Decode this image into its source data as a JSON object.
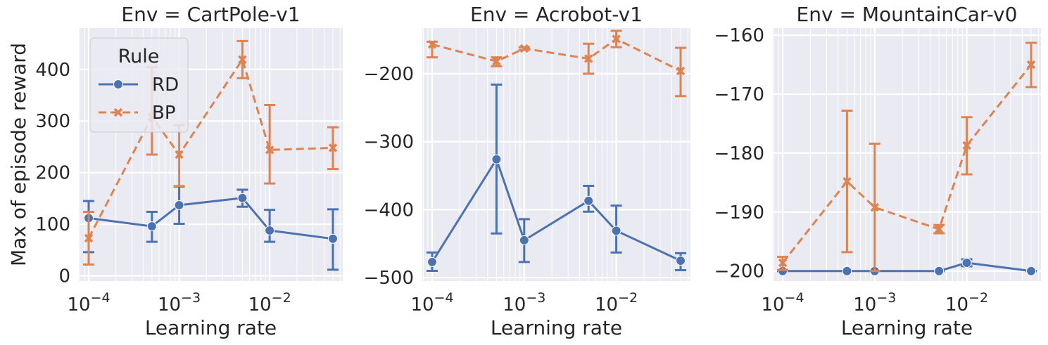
{
  "figure": {
    "ylabel": "Max of episode reward",
    "xlabel": "Learning rate",
    "legend": {
      "title": "Rule",
      "entries": [
        "RD",
        "BP"
      ],
      "placement": "upper-left of first panel"
    }
  },
  "colors": {
    "RD": "#4c72b0",
    "BP": "#dd8452",
    "panel_bg": "#eaeaf2",
    "grid": "#ffffff"
  },
  "chart_data": [
    {
      "type": "line",
      "title": "Env = CartPole-v1",
      "xlabel": "Learning rate",
      "ylabel": "Max of episode reward",
      "xscale": "log",
      "xlim": [
        0.0001,
        0.05
      ],
      "xticks": [
        0.0001,
        0.001,
        0.01
      ],
      "xtick_labels": [
        "10^-4",
        "10^-3",
        "10^-2"
      ],
      "ylim": [
        -10,
        480
      ],
      "yticks": [
        0,
        100,
        200,
        300,
        400
      ],
      "yticklabels": [
        "0",
        "100",
        "200",
        "300",
        "400"
      ],
      "grid": true,
      "series": [
        {
          "name": "RD",
          "marker": "circle",
          "linestyle": "solid",
          "x": [
            0.0001,
            0.0005,
            0.001,
            0.005,
            0.01,
            0.05
          ],
          "y": [
            112,
            96,
            137,
            151,
            88,
            72
          ],
          "err_low": [
            46,
            66,
            101,
            134,
            66,
            12
          ],
          "err_high": [
            145,
            124,
            173,
            167,
            128,
            129
          ]
        },
        {
          "name": "BP",
          "marker": "x",
          "linestyle": "dashed",
          "x": [
            0.0001,
            0.0005,
            0.001,
            0.005,
            0.01,
            0.05
          ],
          "y": [
            73,
            308,
            235,
            419,
            244,
            248
          ],
          "err_low": [
            22,
            235,
            174,
            383,
            179,
            207
          ],
          "err_high": [
            124,
            404,
            292,
            455,
            331,
            288
          ]
        }
      ]
    },
    {
      "type": "line",
      "title": "Env = Acrobot-v1",
      "xlabel": "Learning rate",
      "ylabel": "",
      "xscale": "log",
      "xlim": [
        0.0001,
        0.05
      ],
      "xticks": [
        0.0001,
        0.001,
        0.01
      ],
      "xtick_labels": [
        "10^-4",
        "10^-3",
        "10^-2"
      ],
      "ylim": [
        -505,
        -133
      ],
      "yticks": [
        -500,
        -400,
        -300,
        -200
      ],
      "yticklabels": [
        "−500",
        "−400",
        "−300",
        "−200"
      ],
      "grid": true,
      "series": [
        {
          "name": "RD",
          "marker": "circle",
          "linestyle": "solid",
          "x": [
            0.0001,
            0.0005,
            0.001,
            0.005,
            0.01,
            0.05
          ],
          "y": [
            -477,
            -326,
            -445,
            -387,
            -431,
            -475
          ],
          "err_low": [
            -490,
            -435,
            -477,
            -403,
            -463,
            -489
          ],
          "err_high": [
            -463,
            -216,
            -414,
            -365,
            -394,
            -464
          ]
        },
        {
          "name": "BP",
          "marker": "x",
          "linestyle": "dashed",
          "x": [
            0.0001,
            0.0005,
            0.001,
            0.005,
            0.01,
            0.05
          ],
          "y": [
            -157,
            -182,
            -163,
            -178,
            -149,
            -196
          ],
          "err_low": [
            -176,
            -189,
            -165,
            -200,
            -161,
            -233
          ],
          "err_high": [
            -153,
            -176,
            -161,
            -156,
            -137,
            -162
          ]
        }
      ]
    },
    {
      "type": "line",
      "title": "Env = MountainCar-v0",
      "xlabel": "Learning rate",
      "ylabel": "",
      "xscale": "log",
      "xlim": [
        0.0001,
        0.05
      ],
      "xticks": [
        0.0001,
        0.001,
        0.01
      ],
      "xtick_labels": [
        "10^-4",
        "10^-3",
        "10^-2"
      ],
      "ylim": [
        -201.7,
        -158.8
      ],
      "yticks": [
        -200,
        -190,
        -180,
        -170,
        -160
      ],
      "yticklabels": [
        "−200",
        "−190",
        "−180",
        "−170",
        "−160"
      ],
      "grid": true,
      "series": [
        {
          "name": "RD",
          "marker": "circle",
          "linestyle": "solid",
          "x": [
            0.0001,
            0.0005,
            0.001,
            0.005,
            0.01,
            0.05
          ],
          "y": [
            -200,
            -200,
            -200,
            -200,
            -198.6,
            -200
          ],
          "err_low": [
            -200,
            -200,
            -200,
            -200,
            -199.2,
            -200
          ],
          "err_high": [
            -200,
            -200,
            -200,
            -200,
            -198.0,
            -200
          ]
        },
        {
          "name": "BP",
          "marker": "x",
          "linestyle": "dashed",
          "x": [
            0.0001,
            0.0005,
            0.001,
            0.005,
            0.01,
            0.05
          ],
          "y": [
            -198.6,
            -184.8,
            -189.2,
            -192.9,
            -178.7,
            -165.0
          ],
          "err_low": [
            -199.8,
            -196.8,
            -200.0,
            -193.6,
            -183.6,
            -168.8
          ],
          "err_high": [
            -197.6,
            -172.8,
            -178.4,
            -192.2,
            -173.9,
            -161.3
          ]
        }
      ]
    }
  ]
}
